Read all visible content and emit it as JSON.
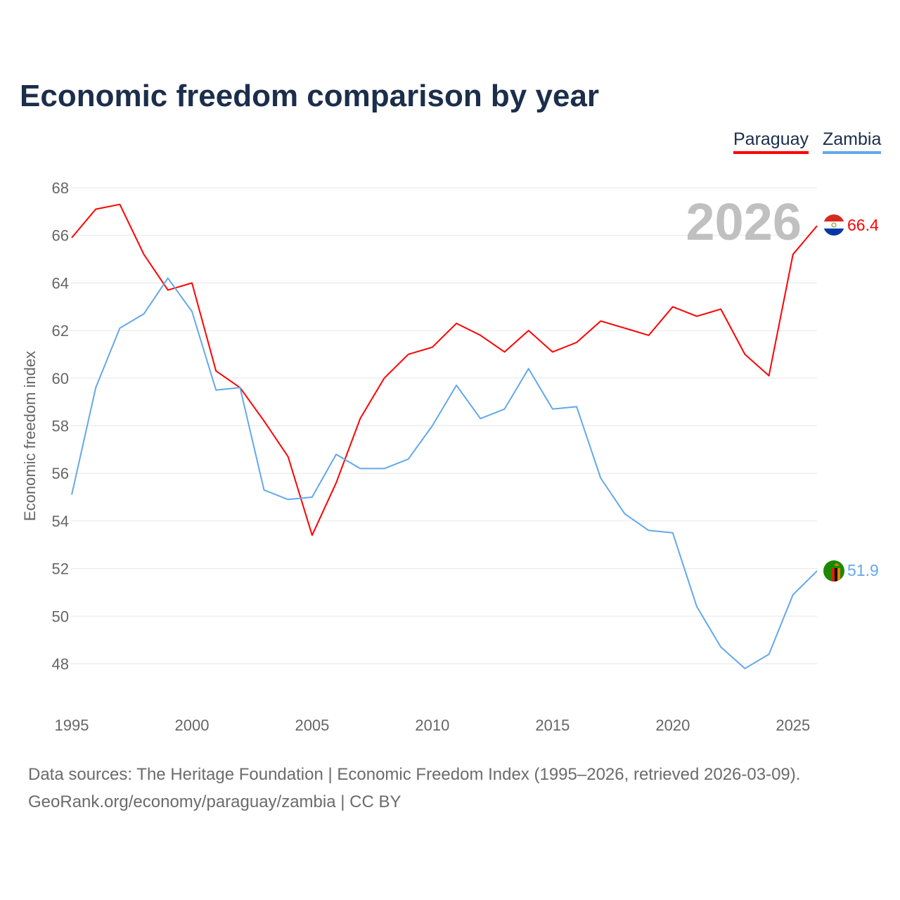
{
  "chart_data": {
    "type": "line",
    "title": "Economic freedom comparison by year",
    "xlabel": "",
    "ylabel": "Economic freedom index",
    "ylim": [
      46.5,
      68
    ],
    "xlim": [
      1995,
      2026
    ],
    "yticks": [
      48,
      50,
      52,
      54,
      56,
      58,
      60,
      62,
      64,
      66,
      68
    ],
    "xticks": [
      1995,
      2000,
      2005,
      2010,
      2015,
      2020,
      2025
    ],
    "grid": true,
    "legend_position": "top-right",
    "year_label": "2026",
    "x": [
      1995,
      1996,
      1997,
      1998,
      1999,
      2000,
      2001,
      2002,
      2003,
      2004,
      2005,
      2006,
      2007,
      2008,
      2009,
      2010,
      2011,
      2012,
      2013,
      2014,
      2015,
      2016,
      2017,
      2018,
      2019,
      2020,
      2021,
      2022,
      2023,
      2024,
      2025,
      2026
    ],
    "series": [
      {
        "name": "Paraguay",
        "color": "#ff0000",
        "end_label": "66.4",
        "values": [
          65.9,
          67.1,
          67.3,
          65.2,
          63.7,
          64.0,
          60.3,
          59.6,
          58.2,
          56.7,
          53.4,
          55.6,
          58.3,
          60.0,
          61.0,
          61.3,
          62.3,
          61.8,
          61.1,
          62.0,
          61.1,
          61.5,
          62.4,
          62.1,
          61.8,
          63.0,
          62.6,
          62.9,
          61.0,
          60.1,
          65.2,
          66.4
        ]
      },
      {
        "name": "Zambia",
        "color": "#63a8eb",
        "end_label": "51.9",
        "values": [
          55.1,
          59.6,
          62.1,
          62.7,
          64.2,
          62.8,
          59.5,
          59.6,
          55.3,
          54.9,
          55.0,
          56.8,
          56.2,
          56.2,
          56.6,
          58.0,
          59.7,
          58.3,
          58.7,
          60.4,
          58.7,
          58.8,
          55.8,
          54.3,
          53.6,
          53.5,
          50.4,
          48.7,
          47.8,
          48.4,
          50.9,
          51.9
        ]
      }
    ]
  },
  "footer": {
    "line1": "Data sources: The Heritage Foundation | Economic Freedom Index (1995–2026, retrieved 2026-03-09).",
    "line2": "GeoRank.org/economy/paraguay/zambia | CC BY"
  }
}
